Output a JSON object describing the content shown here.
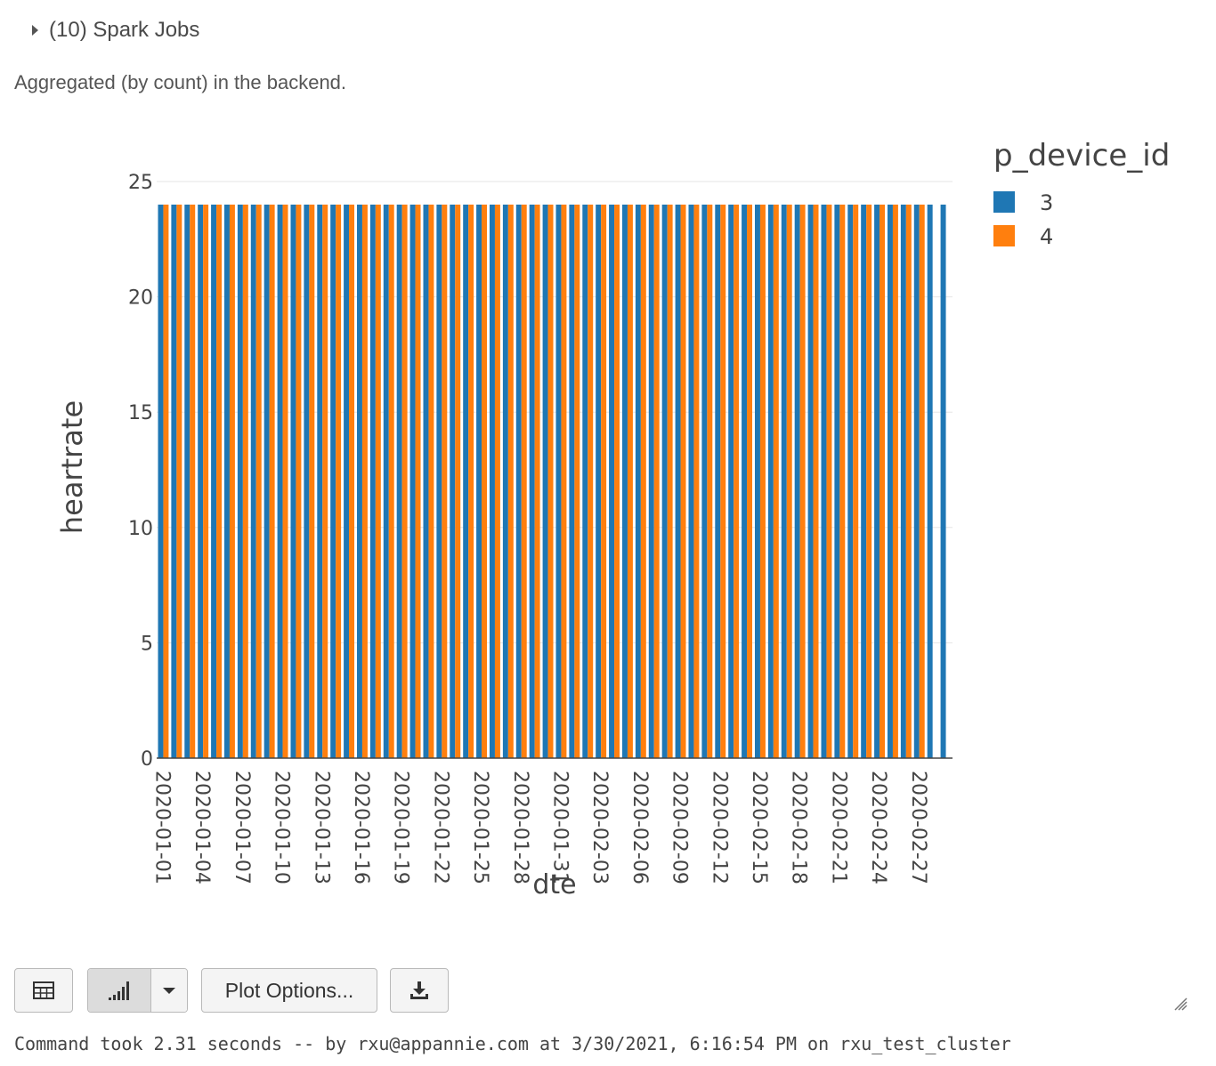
{
  "spark_jobs": {
    "label": "(10) Spark Jobs"
  },
  "aggregation_note": "Aggregated (by count) in the backend.",
  "toolbar": {
    "table_icon": "table-icon",
    "chart_icon": "bar-chart-icon",
    "dropdown_icon": "chevron-down-icon",
    "plot_options_label": "Plot Options...",
    "download_icon": "download-icon"
  },
  "status": {
    "command_summary": "Command took 2.31 seconds -- by rxu@appannie.com at 3/30/2021, 6:16:54 PM on rxu_test_cluster"
  },
  "chart_data": {
    "type": "bar",
    "barmode": "group",
    "xlabel": "dte",
    "ylabel": "heartrate",
    "legend_title": "p_device_id",
    "legend_position": "top-right",
    "ylim": [
      0,
      25
    ],
    "yticks": [
      0,
      5,
      10,
      15,
      20,
      25
    ],
    "grid": true,
    "categories": [
      "2020-01-01",
      "2020-01-02",
      "2020-01-03",
      "2020-01-04",
      "2020-01-05",
      "2020-01-06",
      "2020-01-07",
      "2020-01-08",
      "2020-01-09",
      "2020-01-10",
      "2020-01-11",
      "2020-01-12",
      "2020-01-13",
      "2020-01-14",
      "2020-01-15",
      "2020-01-16",
      "2020-01-17",
      "2020-01-18",
      "2020-01-19",
      "2020-01-20",
      "2020-01-21",
      "2020-01-22",
      "2020-01-23",
      "2020-01-24",
      "2020-01-25",
      "2020-01-26",
      "2020-01-27",
      "2020-01-28",
      "2020-01-29",
      "2020-01-30",
      "2020-01-31",
      "2020-02-01",
      "2020-02-02",
      "2020-02-03",
      "2020-02-04",
      "2020-02-05",
      "2020-02-06",
      "2020-02-07",
      "2020-02-08",
      "2020-02-09",
      "2020-02-10",
      "2020-02-11",
      "2020-02-12",
      "2020-02-13",
      "2020-02-14",
      "2020-02-15",
      "2020-02-16",
      "2020-02-17",
      "2020-02-18",
      "2020-02-19",
      "2020-02-20",
      "2020-02-21",
      "2020-02-22",
      "2020-02-23",
      "2020-02-24",
      "2020-02-25",
      "2020-02-26",
      "2020-02-27",
      "2020-02-28",
      "2020-02-29"
    ],
    "xtick_labels": [
      "2020-01-01",
      "2020-01-04",
      "2020-01-07",
      "2020-01-10",
      "2020-01-13",
      "2020-01-16",
      "2020-01-19",
      "2020-01-22",
      "2020-01-25",
      "2020-01-28",
      "2020-01-31",
      "2020-02-03",
      "2020-02-06",
      "2020-02-09",
      "2020-02-12",
      "2020-02-15",
      "2020-02-18",
      "2020-02-21",
      "2020-02-24",
      "2020-02-27"
    ],
    "series": [
      {
        "name": "3",
        "color": "#1f77b4",
        "values": [
          24,
          24,
          24,
          24,
          24,
          24,
          24,
          24,
          24,
          24,
          24,
          24,
          24,
          24,
          24,
          24,
          24,
          24,
          24,
          24,
          24,
          24,
          24,
          24,
          24,
          24,
          24,
          24,
          24,
          24,
          24,
          24,
          24,
          24,
          24,
          24,
          24,
          24,
          24,
          24,
          24,
          24,
          24,
          24,
          24,
          24,
          24,
          24,
          24,
          24,
          24,
          24,
          24,
          24,
          24,
          24,
          24,
          24,
          24,
          24
        ]
      },
      {
        "name": "4",
        "color": "#ff7f0e",
        "values": [
          24,
          24,
          24,
          24,
          24,
          24,
          24,
          24,
          24,
          24,
          24,
          24,
          24,
          24,
          24,
          24,
          24,
          24,
          24,
          24,
          24,
          24,
          24,
          24,
          24,
          24,
          24,
          24,
          24,
          24,
          24,
          24,
          24,
          24,
          24,
          24,
          24,
          24,
          24,
          24,
          24,
          24,
          24,
          24,
          24,
          24,
          24,
          24,
          24,
          24,
          24,
          24,
          24,
          24,
          24,
          24,
          24,
          24,
          null,
          null
        ]
      }
    ]
  }
}
